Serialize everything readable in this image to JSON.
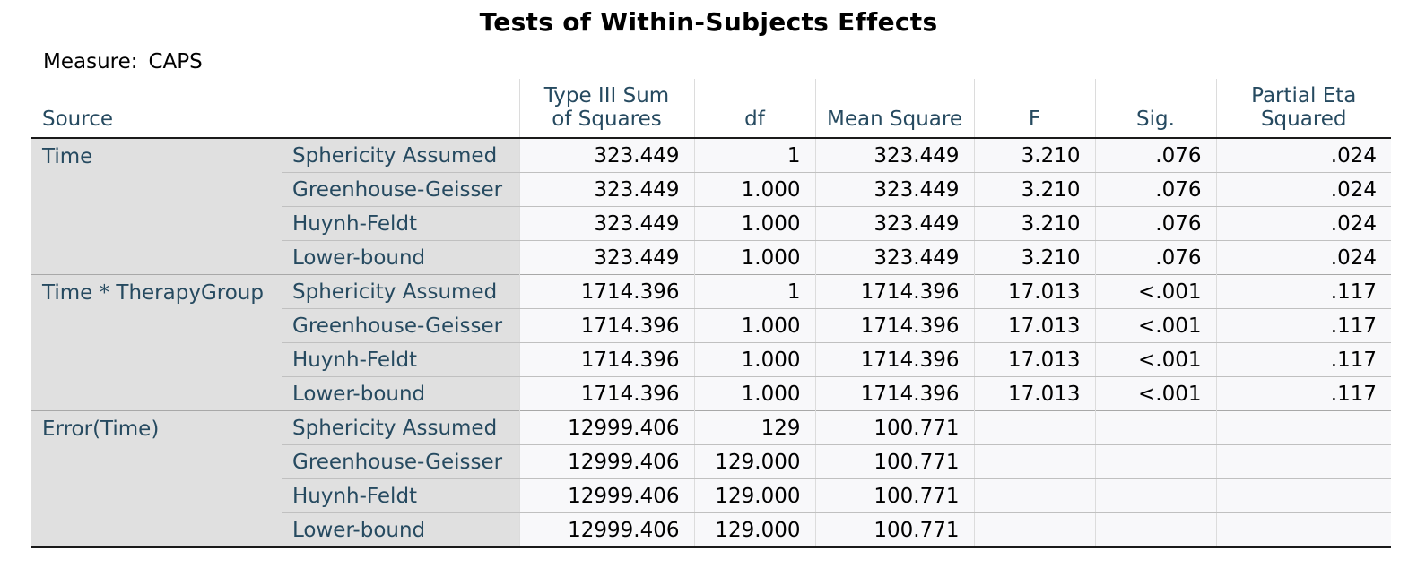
{
  "title": "Tests of Within-Subjects Effects",
  "measure": {
    "label": "Measure:",
    "value": "CAPS"
  },
  "columns": {
    "source": "Source",
    "ss_line1": "Type III Sum",
    "ss_line2": "of Squares",
    "df": "df",
    "ms": "Mean Square",
    "f": "F",
    "sig": "Sig.",
    "eta_line1": "Partial Eta",
    "eta_line2": "Squared"
  },
  "groups": [
    {
      "source": "Time",
      "rows": [
        {
          "label": "Sphericity Assumed",
          "ss": "323.449",
          "df": "1",
          "ms": "323.449",
          "f": "3.210",
          "sig": ".076",
          "eta": ".024"
        },
        {
          "label": "Greenhouse-Geisser",
          "ss": "323.449",
          "df": "1.000",
          "ms": "323.449",
          "f": "3.210",
          "sig": ".076",
          "eta": ".024"
        },
        {
          "label": "Huynh-Feldt",
          "ss": "323.449",
          "df": "1.000",
          "ms": "323.449",
          "f": "3.210",
          "sig": ".076",
          "eta": ".024"
        },
        {
          "label": "Lower-bound",
          "ss": "323.449",
          "df": "1.000",
          "ms": "323.449",
          "f": "3.210",
          "sig": ".076",
          "eta": ".024"
        }
      ]
    },
    {
      "source": "Time * TherapyGroup",
      "rows": [
        {
          "label": "Sphericity Assumed",
          "ss": "1714.396",
          "df": "1",
          "ms": "1714.396",
          "f": "17.013",
          "sig": "<.001",
          "eta": ".117"
        },
        {
          "label": "Greenhouse-Geisser",
          "ss": "1714.396",
          "df": "1.000",
          "ms": "1714.396",
          "f": "17.013",
          "sig": "<.001",
          "eta": ".117"
        },
        {
          "label": "Huynh-Feldt",
          "ss": "1714.396",
          "df": "1.000",
          "ms": "1714.396",
          "f": "17.013",
          "sig": "<.001",
          "eta": ".117"
        },
        {
          "label": "Lower-bound",
          "ss": "1714.396",
          "df": "1.000",
          "ms": "1714.396",
          "f": "17.013",
          "sig": "<.001",
          "eta": ".117"
        }
      ]
    },
    {
      "source": "Error(Time)",
      "rows": [
        {
          "label": "Sphericity Assumed",
          "ss": "12999.406",
          "df": "129",
          "ms": "100.771",
          "f": "",
          "sig": "",
          "eta": ""
        },
        {
          "label": "Greenhouse-Geisser",
          "ss": "12999.406",
          "df": "129.000",
          "ms": "100.771",
          "f": "",
          "sig": "",
          "eta": ""
        },
        {
          "label": "Huynh-Feldt",
          "ss": "12999.406",
          "df": "129.000",
          "ms": "100.771",
          "f": "",
          "sig": "",
          "eta": ""
        },
        {
          "label": "Lower-bound",
          "ss": "12999.406",
          "df": "129.000",
          "ms": "100.771",
          "f": "",
          "sig": "",
          "eta": ""
        }
      ]
    }
  ]
}
